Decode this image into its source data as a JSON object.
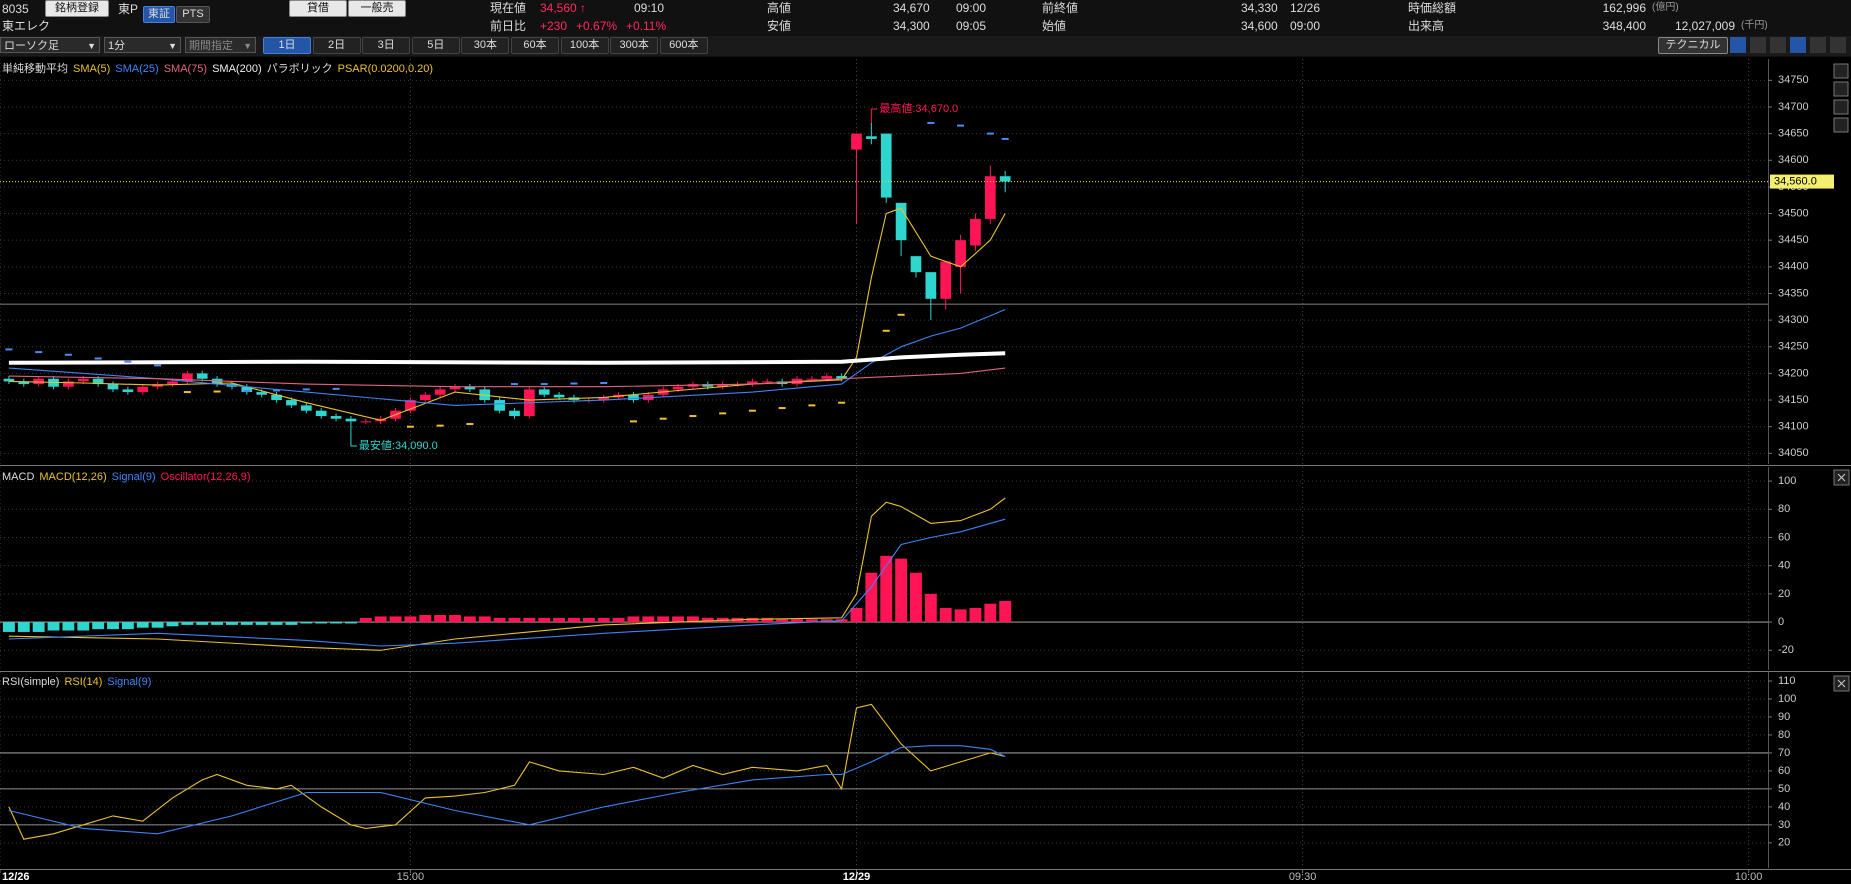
{
  "header": {
    "code": "8035",
    "register": "銘柄登録",
    "market": "東P",
    "exchanges": [
      "東証",
      "PTS"
    ],
    "buttons": [
      "貸借",
      "一般売"
    ],
    "name": "東エレク",
    "price": {
      "label": "現在値",
      "value": "34,560 ↑",
      "time": "09:10"
    },
    "change": {
      "label": "前日比",
      "value": "+230",
      "pct": "+0.67%",
      "pct2": "+0.11%"
    },
    "high": {
      "label": "高値",
      "value": "34,670",
      "time": "09:00"
    },
    "low": {
      "label": "安値",
      "value": "34,300",
      "time": "09:05"
    },
    "prev_close": {
      "label": "前終値",
      "value": "34,330",
      "date": "12/26"
    },
    "open": {
      "label": "始値",
      "value": "34,600",
      "time": "09:00"
    },
    "market_cap": {
      "label": "時価総額",
      "value": "162,996",
      "unit": "(億円)"
    },
    "volume": {
      "label": "出来高",
      "value": "348,400",
      "amount": "12,027,009",
      "unit": "(千円)"
    }
  },
  "toolbar": {
    "chart_type": "ローソク足",
    "interval": "1分",
    "period": "期間指定",
    "ranges": [
      "1日",
      "2日",
      "3日",
      "5日",
      "30本",
      "60本",
      "100本",
      "300本",
      "600本"
    ],
    "technical": "テクニカル"
  },
  "chart_data": [
    {
      "type": "candlestick",
      "title": "単純移動平均",
      "ylim": [
        34030,
        34790
      ],
      "yticks": [
        34050,
        34100,
        34150,
        34200,
        34250,
        34300,
        34350,
        34400,
        34450,
        34500,
        34550,
        34600,
        34650,
        34700,
        34750
      ],
      "grid": true,
      "up_color": "#ff1455",
      "down_color": "#2fd6d0",
      "x": [
        0,
        1,
        2,
        3,
        4,
        5,
        6,
        7,
        8,
        9,
        10,
        11,
        12,
        13,
        14,
        15,
        16,
        17,
        18,
        19,
        20,
        21,
        22,
        23,
        24,
        25,
        26,
        27,
        28,
        29,
        30,
        31,
        32,
        33,
        34,
        35,
        36,
        37,
        38,
        39,
        40,
        41,
        42,
        43,
        44,
        45,
        46,
        47,
        48,
        49,
        50,
        51,
        52,
        53,
        54,
        55,
        56,
        57,
        58,
        59,
        60,
        61,
        62,
        63,
        64,
        65,
        66,
        67
      ],
      "open": [
        34190,
        34185,
        34180,
        34190,
        34175,
        34185,
        34190,
        34180,
        34170,
        34165,
        34175,
        34180,
        34185,
        34200,
        34190,
        34180,
        34175,
        34165,
        34160,
        34150,
        34140,
        34130,
        34120,
        34115,
        34110,
        34110,
        34115,
        34130,
        34150,
        34160,
        34170,
        34175,
        34170,
        34150,
        34130,
        34120,
        34170,
        34160,
        34155,
        34150,
        34150,
        34155,
        34160,
        34150,
        34160,
        34170,
        34175,
        34180,
        34175,
        34180,
        34180,
        34185,
        34185,
        34180,
        34190,
        34190,
        34195,
        34620,
        34645,
        34650,
        34520,
        34420,
        34390,
        34340,
        34400,
        34440,
        34490,
        34570
      ],
      "high": [
        34195,
        34190,
        34195,
        34195,
        34190,
        34195,
        34195,
        34185,
        34175,
        34180,
        34185,
        34190,
        34205,
        34205,
        34195,
        34185,
        34180,
        34170,
        34165,
        34155,
        34145,
        34135,
        34125,
        34120,
        34115,
        34120,
        34135,
        34155,
        34165,
        34175,
        34180,
        34180,
        34175,
        34155,
        34135,
        34175,
        34175,
        34165,
        34160,
        34155,
        34160,
        34165,
        34165,
        34165,
        34175,
        34180,
        34185,
        34185,
        34185,
        34185,
        34190,
        34190,
        34190,
        34195,
        34195,
        34200,
        34200,
        34650,
        34670,
        34650,
        34520,
        34420,
        34390,
        34410,
        34460,
        34500,
        34590,
        34580
      ],
      "low": [
        34180,
        34175,
        34175,
        34170,
        34170,
        34180,
        34175,
        34165,
        34160,
        34160,
        34170,
        34175,
        34180,
        34185,
        34175,
        34170,
        34160,
        34155,
        34145,
        34135,
        34125,
        34115,
        34110,
        34090,
        34105,
        34105,
        34110,
        34125,
        34145,
        34155,
        34165,
        34165,
        34145,
        34125,
        34115,
        34115,
        34155,
        34150,
        34145,
        34145,
        34145,
        34150,
        34145,
        34145,
        34155,
        34165,
        34170,
        34170,
        34170,
        34175,
        34175,
        34180,
        34175,
        34175,
        34185,
        34185,
        34185,
        34480,
        34630,
        34520,
        34420,
        34380,
        34300,
        34320,
        34350,
        34430,
        34480,
        34540
      ],
      "close": [
        34185,
        34180,
        34190,
        34175,
        34185,
        34190,
        34180,
        34170,
        34165,
        34175,
        34180,
        34185,
        34200,
        34190,
        34180,
        34175,
        34165,
        34160,
        34150,
        34140,
        34130,
        34120,
        34115,
        34110,
        34110,
        34115,
        34130,
        34150,
        34160,
        34170,
        34175,
        34170,
        34150,
        34130,
        34120,
        34170,
        34160,
        34155,
        34150,
        34150,
        34155,
        34160,
        34150,
        34160,
        34170,
        34175,
        34180,
        34175,
        34180,
        34180,
        34185,
        34185,
        34180,
        34190,
        34190,
        34195,
        34190,
        34650,
        34640,
        34530,
        34450,
        34390,
        34340,
        34410,
        34450,
        34490,
        34570,
        34560
      ],
      "series": [
        {
          "name": "SMA(5)",
          "kind": "line",
          "color": "#e8c22a",
          "x": [
            0,
            5,
            10,
            15,
            20,
            25,
            30,
            35,
            40,
            45,
            50,
            56,
            57,
            58,
            59,
            60,
            62,
            64,
            66,
            67
          ],
          "values": [
            34185,
            34182,
            34178,
            34182,
            34145,
            34112,
            34165,
            34150,
            34155,
            34168,
            34180,
            34188,
            34230,
            34380,
            34500,
            34510,
            34420,
            34400,
            34450,
            34500
          ]
        },
        {
          "name": "SMA(25)",
          "kind": "line",
          "color": "#3d84f5",
          "x": [
            0,
            10,
            20,
            30,
            40,
            50,
            56,
            58,
            60,
            62,
            64,
            67
          ],
          "values": [
            34210,
            34190,
            34165,
            34140,
            34150,
            34165,
            34180,
            34220,
            34250,
            34270,
            34285,
            34320
          ]
        },
        {
          "name": "SMA(75)",
          "kind": "line",
          "color": "#e0647f",
          "x": [
            0,
            10,
            20,
            30,
            40,
            50,
            56,
            60,
            64,
            67
          ],
          "values": [
            34195,
            34190,
            34180,
            34175,
            34175,
            34180,
            34190,
            34195,
            34200,
            34210
          ]
        },
        {
          "name": "SMA(200)",
          "kind": "line",
          "color": "#ffffff",
          "width": 4,
          "x": [
            0,
            20,
            40,
            56,
            60,
            64,
            67
          ],
          "values": [
            34220,
            34222,
            34220,
            34222,
            34230,
            34235,
            34238
          ]
        },
        {
          "name": "PSAR(0.0200,0.20)",
          "title": "パラボリック",
          "kind": "dots",
          "color": "#f0c030",
          "color_above": "#4a8cf0",
          "x": [
            0,
            2,
            4,
            6,
            8,
            10,
            12,
            14,
            16,
            18,
            20,
            22,
            27,
            29,
            31,
            34,
            36,
            38,
            40,
            42,
            44,
            46,
            48,
            50,
            52,
            54,
            56,
            59,
            60,
            62,
            64,
            66,
            67
          ],
          "values": [
            34245,
            34240,
            34235,
            34228,
            34222,
            34215,
            34165,
            34166,
            34167,
            34168,
            34170,
            34171,
            34100,
            34102,
            34105,
            34180,
            34180,
            34181,
            34182,
            34110,
            34115,
            34120,
            34125,
            34130,
            34135,
            34140,
            34145,
            34280,
            34310,
            34670,
            34665,
            34650,
            34640
          ]
        }
      ],
      "last": {
        "value": 34560,
        "label": "34,560.0"
      },
      "prev_close": 34330,
      "annotations": [
        {
          "label": "最高値:34,670.0",
          "x": 58,
          "value": 34670,
          "color": "#ff1455"
        },
        {
          "label": "最安値:34,090.0",
          "x": 23,
          "value": 34090,
          "color": "#2fd6d0"
        }
      ]
    },
    {
      "type": "combo",
      "title": "MACD",
      "ylim": [
        -34,
        110
      ],
      "yticks": [
        -20,
        0,
        20,
        40,
        60,
        80,
        100
      ],
      "grid": true,
      "ref_lines": [
        0
      ],
      "series": [
        {
          "name": "MACD(12,26)",
          "kind": "line",
          "color": "#e8c22a",
          "x": [
            0,
            10,
            20,
            25,
            30,
            40,
            50,
            56,
            57,
            58,
            59,
            60,
            62,
            64,
            66,
            67
          ],
          "values": [
            -10,
            -12,
            -18,
            -20,
            -12,
            -2,
            2,
            3,
            20,
            75,
            85,
            82,
            70,
            72,
            80,
            88
          ]
        },
        {
          "name": "Signal(9)",
          "kind": "line",
          "color": "#3d84f5",
          "x": [
            0,
            10,
            20,
            25,
            30,
            40,
            50,
            56,
            58,
            60,
            62,
            64,
            67
          ],
          "values": [
            -12,
            -8,
            -13,
            -17,
            -15,
            -8,
            -2,
            1,
            25,
            55,
            60,
            64,
            73
          ]
        },
        {
          "name": "Oscillator(12,26,9)",
          "kind": "bar",
          "color": "#ff1455",
          "color_negative": "#2fd6d0",
          "x": [
            0,
            1,
            2,
            3,
            4,
            5,
            6,
            7,
            8,
            9,
            10,
            11,
            12,
            13,
            14,
            15,
            16,
            17,
            18,
            19,
            20,
            21,
            22,
            23,
            24,
            25,
            26,
            27,
            28,
            29,
            30,
            31,
            32,
            33,
            34,
            35,
            36,
            37,
            38,
            39,
            40,
            41,
            42,
            43,
            44,
            45,
            46,
            47,
            48,
            49,
            50,
            51,
            52,
            53,
            54,
            55,
            56,
            57,
            58,
            59,
            60,
            61,
            62,
            63,
            64,
            65,
            66,
            67
          ],
          "values": [
            -7,
            -7,
            -7,
            -6,
            -6,
            -6,
            -5,
            -5,
            -5,
            -4,
            -4,
            -3,
            -2,
            -2,
            -2,
            -2,
            -2,
            -2,
            -2,
            -2,
            -1,
            -1,
            -1,
            -1,
            3,
            4,
            4,
            4,
            5,
            5,
            5,
            4,
            4,
            3,
            3,
            3,
            3,
            3,
            3,
            3,
            3,
            3,
            4,
            4,
            4,
            4,
            4,
            3,
            3,
            3,
            3,
            3,
            2,
            2,
            2,
            2,
            2,
            10,
            35,
            47,
            45,
            35,
            20,
            10,
            9,
            10,
            13,
            15
          ]
        }
      ]
    },
    {
      "type": "line",
      "title": "RSI(simple)",
      "ylim": [
        6,
        115
      ],
      "yticks": [
        20,
        30,
        40,
        50,
        60,
        70,
        80,
        90,
        100,
        110
      ],
      "grid": true,
      "ref_lines": [
        70,
        50,
        30
      ],
      "xlim": [
        -0.6,
        118.3
      ],
      "xticks": [
        {
          "value": -0.6,
          "label": "12/26"
        },
        {
          "value": 27,
          "label": "15:00"
        },
        {
          "value": 57,
          "label": "12/29"
        },
        {
          "value": 87,
          "label": "09:30"
        },
        {
          "value": 117,
          "label": "10:00"
        }
      ],
      "series": [
        {
          "name": "RSI(14)",
          "kind": "line",
          "color": "#e8c22a",
          "x": [
            0,
            1,
            3,
            5,
            7,
            9,
            11,
            13,
            14,
            16,
            18,
            19,
            21,
            23,
            24,
            26,
            28,
            30,
            32,
            34,
            35,
            37,
            40,
            42,
            44,
            46,
            48,
            50,
            53,
            55,
            56,
            57,
            58,
            60,
            62,
            64,
            66,
            67
          ],
          "values": [
            40,
            22,
            25,
            30,
            35,
            32,
            45,
            55,
            58,
            52,
            50,
            52,
            40,
            30,
            28,
            30,
            45,
            46,
            48,
            52,
            65,
            60,
            58,
            62,
            56,
            63,
            58,
            62,
            60,
            63,
            50,
            95,
            97,
            75,
            60,
            65,
            70,
            68
          ]
        },
        {
          "name": "Signal(9)",
          "kind": "line",
          "color": "#3d84f5",
          "x": [
            0,
            5,
            10,
            15,
            20,
            25,
            30,
            35,
            40,
            45,
            50,
            55,
            56,
            58,
            60,
            62,
            64,
            66,
            67
          ],
          "values": [
            38,
            28,
            25,
            35,
            48,
            48,
            38,
            30,
            40,
            48,
            55,
            58,
            58,
            65,
            73,
            74,
            74,
            72,
            68
          ]
        }
      ]
    }
  ]
}
